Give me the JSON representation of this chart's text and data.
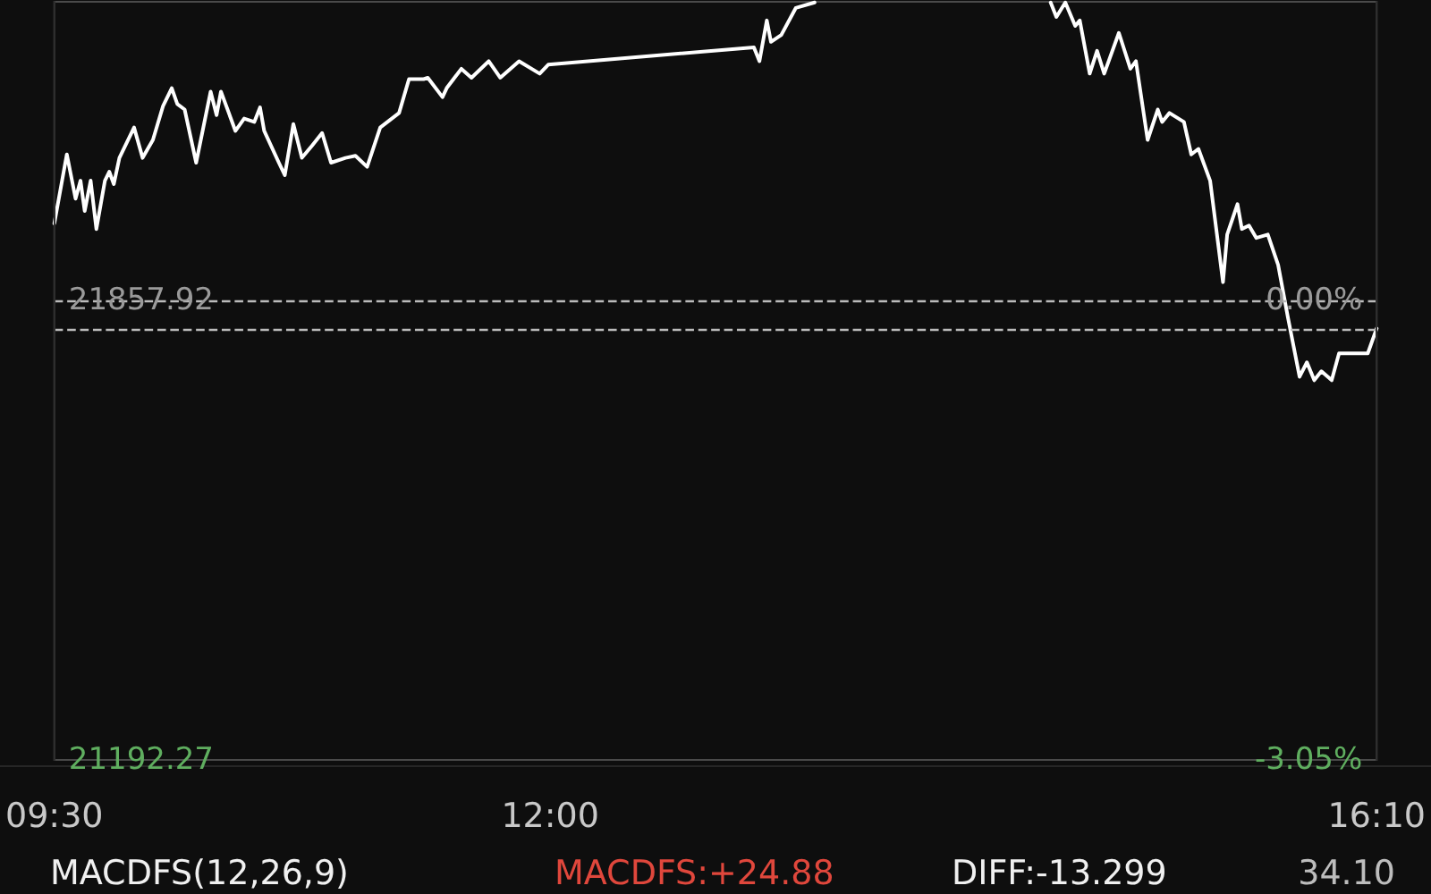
{
  "chart_data": {
    "type": "line",
    "x": [
      9.5,
      9.563,
      9.607,
      9.632,
      9.653,
      9.683,
      9.712,
      9.755,
      9.777,
      9.8,
      9.828,
      9.902,
      9.945,
      9.997,
      10.048,
      10.092,
      10.12,
      10.157,
      10.215,
      10.288,
      10.318,
      10.34,
      10.413,
      10.457,
      10.508,
      10.537,
      10.558,
      10.632,
      10.662,
      10.705,
      10.748,
      10.8,
      10.85,
      10.895,
      10.968,
      11.018,
      11.077,
      11.143,
      11.238,
      11.288,
      11.362,
      11.383,
      11.457,
      11.478,
      11.552,
      11.603,
      11.69,
      11.748,
      11.843,
      11.947,
      11.99,
      13.027,
      13.055,
      13.092,
      13.113,
      13.165,
      13.238,
      13.333,
      13.917,
      14.523,
      14.552,
      14.597,
      14.647,
      14.67,
      14.72,
      14.757,
      14.793,
      14.867,
      14.925,
      14.953,
      15.012,
      15.063,
      15.085,
      15.122,
      15.195,
      15.232,
      15.268,
      15.327,
      15.392,
      15.413,
      15.465,
      15.487,
      15.523,
      15.56,
      15.618,
      15.67,
      15.72,
      15.778,
      15.815,
      15.852,
      15.888,
      15.94,
      15.977,
      16.122,
      16.1667
    ],
    "series": [
      {
        "color": "#ffffff",
        "values": [
          21969,
          22069,
          22005,
          22031,
          21987,
          22031,
          21961,
          22031,
          22044,
          22026,
          22064,
          22108,
          22064,
          22090,
          22139,
          22165,
          22142,
          22134,
          22057,
          22160,
          22126,
          22160,
          22103,
          22121,
          22116,
          22137,
          22103,
          22057,
          22039,
          22113,
          22064,
          22082,
          22100,
          22057,
          22064,
          22067,
          22051,
          22108,
          22129,
          22178,
          22178,
          22180,
          22152,
          22165,
          22193,
          22180,
          22204,
          22180,
          22204,
          22186,
          22199,
          22224,
          22204,
          22263,
          22232,
          22242,
          22281,
          22289,
          null,
          22289,
          22268,
          22289,
          22255,
          22263,
          22186,
          22219,
          22186,
          22245,
          22193,
          22204,
          22090,
          22134,
          22116,
          22129,
          22116,
          22069,
          22077,
          22031,
          21884,
          21953,
          21997,
          21961,
          21966,
          21948,
          21953,
          21909,
          21832,
          21747,
          21768,
          21742,
          21755,
          21742,
          21781,
          21781,
          21817
        ]
      }
    ],
    "xlim": [
      9.5,
      16.1667
    ],
    "xticks": [
      {
        "value": 9.5,
        "label": "09:30"
      },
      {
        "value": 12,
        "label": "12:00"
      },
      {
        "value": 16.1667,
        "label": "16:10"
      }
    ],
    "ylim": [
      21192.27,
      22290
    ],
    "yticks": [
      21192.27,
      21857.92
    ],
    "y2lim": [
      -3.05,
      1.98
    ],
    "y2ticks": [
      {
        "value": -3.05,
        "label": "-3.05%"
      },
      {
        "value": 0,
        "label": "0.00%"
      }
    ],
    "ref_lines": [
      {
        "axis": "y",
        "value": 21857.92,
        "line_style": "dashed"
      },
      {
        "axis": "y",
        "value": 21816.6,
        "line_style": "dashed"
      }
    ],
    "annotations": [
      "MACDFS(12,26,9)",
      "MACDFS:+24.88",
      "DIFF:-13.299",
      "34.10"
    ],
    "marker": "none",
    "line_style": "solid",
    "grid": false
  }
}
